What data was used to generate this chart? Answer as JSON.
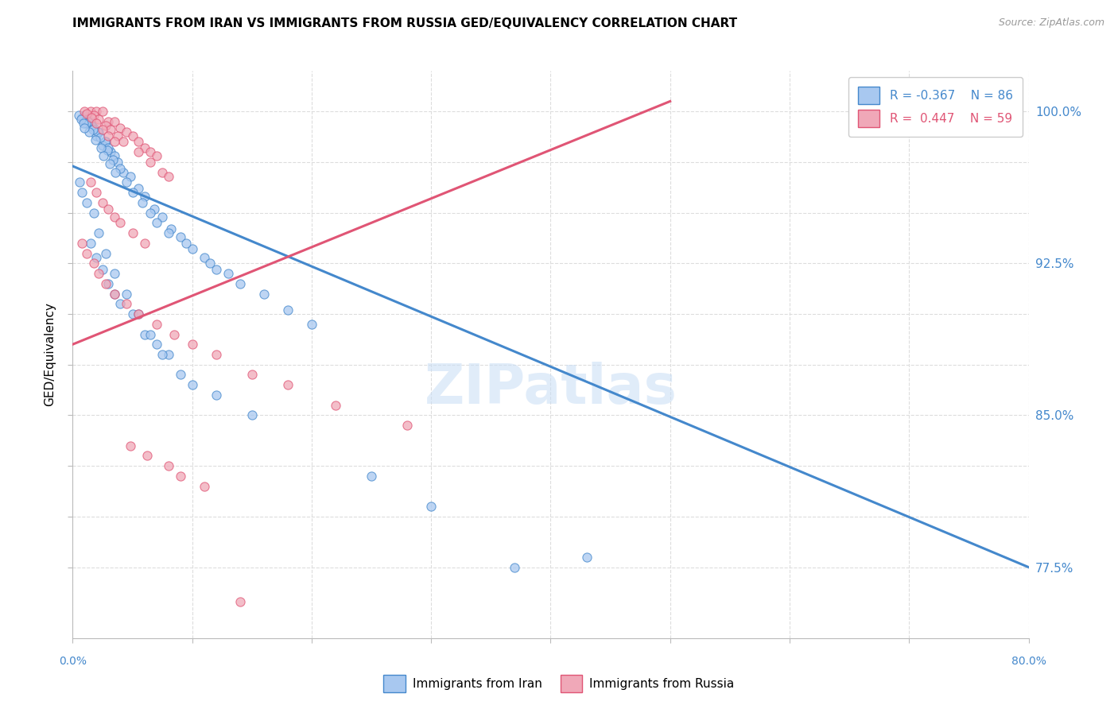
{
  "title": "IMMIGRANTS FROM IRAN VS IMMIGRANTS FROM RUSSIA GED/EQUIVALENCY CORRELATION CHART",
  "source": "Source: ZipAtlas.com",
  "ylabel": "GED/Equivalency",
  "color_iran": "#a8c8f0",
  "color_russia": "#f0a8b8",
  "color_iran_line": "#4488cc",
  "color_russia_line": "#e05575",
  "watermark": "ZIPatlas",
  "xmin": 0.0,
  "xmax": 80.0,
  "ymin": 74.0,
  "ymax": 102.0,
  "ytick_positions": [
    77.5,
    85.0,
    92.5,
    100.0
  ],
  "ytick_labels": [
    "77.5%",
    "85.0%",
    "92.5%",
    "100.0%"
  ],
  "iran_trendline_x": [
    0.0,
    80.0
  ],
  "iran_trendline_y": [
    97.3,
    77.5
  ],
  "russia_trendline_x": [
    0.0,
    50.0
  ],
  "russia_trendline_y": [
    88.5,
    100.5
  ],
  "iran_x": [
    1.5,
    2.2,
    2.8,
    3.2,
    1.8,
    2.0,
    2.5,
    3.5,
    1.0,
    1.2,
    1.6,
    2.1,
    2.7,
    3.0,
    3.8,
    4.2,
    1.3,
    1.7,
    2.3,
    2.9,
    3.4,
    4.0,
    4.8,
    5.5,
    6.0,
    6.8,
    7.5,
    8.2,
    9.0,
    10.0,
    11.0,
    12.0,
    14.0,
    16.0,
    18.0,
    20.0,
    0.8,
    1.1,
    1.4,
    1.9,
    2.4,
    2.6,
    3.1,
    3.6,
    4.5,
    5.0,
    5.8,
    6.5,
    7.0,
    8.0,
    9.5,
    11.5,
    13.0,
    0.5,
    0.7,
    0.9,
    1.0,
    1.5,
    2.0,
    2.5,
    3.0,
    3.5,
    4.0,
    5.0,
    6.0,
    7.0,
    8.0,
    9.0,
    10.0,
    12.0,
    15.0,
    0.6,
    0.8,
    1.2,
    1.8,
    2.2,
    2.8,
    3.5,
    4.5,
    5.5,
    6.5,
    7.5,
    37.0,
    43.0,
    25.0,
    30.0
  ],
  "iran_y": [
    99.5,
    99.0,
    98.5,
    98.0,
    99.2,
    98.8,
    98.3,
    97.8,
    99.8,
    99.6,
    99.3,
    99.0,
    98.5,
    98.2,
    97.5,
    97.0,
    99.5,
    99.1,
    98.7,
    98.1,
    97.6,
    97.2,
    96.8,
    96.2,
    95.8,
    95.2,
    94.8,
    94.2,
    93.8,
    93.2,
    92.8,
    92.2,
    91.5,
    91.0,
    90.2,
    89.5,
    99.7,
    99.4,
    99.0,
    98.6,
    98.2,
    97.8,
    97.4,
    97.0,
    96.5,
    96.0,
    95.5,
    95.0,
    94.5,
    94.0,
    93.5,
    92.5,
    92.0,
    99.8,
    99.6,
    99.4,
    99.2,
    93.5,
    92.8,
    92.2,
    91.5,
    91.0,
    90.5,
    90.0,
    89.0,
    88.5,
    88.0,
    87.0,
    86.5,
    86.0,
    85.0,
    96.5,
    96.0,
    95.5,
    95.0,
    94.0,
    93.0,
    92.0,
    91.0,
    90.0,
    89.0,
    88.0,
    77.5,
    78.0,
    82.0,
    80.5
  ],
  "russia_x": [
    1.5,
    2.0,
    2.5,
    3.0,
    3.5,
    4.0,
    4.5,
    5.0,
    5.5,
    6.0,
    6.5,
    7.0,
    1.0,
    1.8,
    2.2,
    2.8,
    3.2,
    3.8,
    4.2,
    5.5,
    6.5,
    7.5,
    8.0,
    1.2,
    1.6,
    2.0,
    2.5,
    3.0,
    3.5,
    1.5,
    2.0,
    2.5,
    3.0,
    3.5,
    4.0,
    5.0,
    6.0,
    0.8,
    1.2,
    1.8,
    2.2,
    2.8,
    3.5,
    4.5,
    5.5,
    7.0,
    8.5,
    10.0,
    12.0,
    15.0,
    18.0,
    22.0,
    28.0,
    4.8,
    6.2,
    8.0,
    9.0,
    11.0,
    14.0
  ],
  "russia_y": [
    100.0,
    100.0,
    100.0,
    99.5,
    99.5,
    99.2,
    99.0,
    98.8,
    98.5,
    98.2,
    98.0,
    97.8,
    100.0,
    99.8,
    99.6,
    99.3,
    99.1,
    98.8,
    98.5,
    98.0,
    97.5,
    97.0,
    96.8,
    99.9,
    99.7,
    99.4,
    99.1,
    98.8,
    98.5,
    96.5,
    96.0,
    95.5,
    95.2,
    94.8,
    94.5,
    94.0,
    93.5,
    93.5,
    93.0,
    92.5,
    92.0,
    91.5,
    91.0,
    90.5,
    90.0,
    89.5,
    89.0,
    88.5,
    88.0,
    87.0,
    86.5,
    85.5,
    84.5,
    83.5,
    83.0,
    82.5,
    82.0,
    81.5,
    75.8
  ]
}
